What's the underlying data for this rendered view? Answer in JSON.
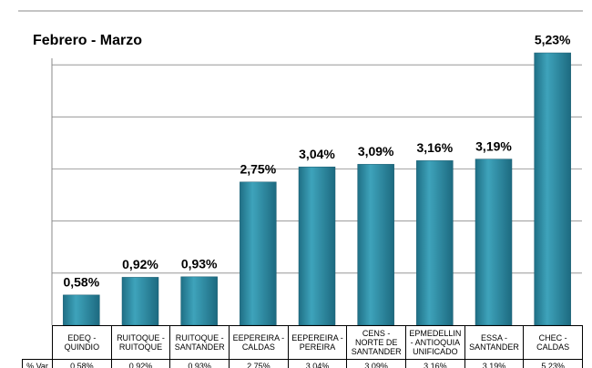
{
  "chart_data": {
    "type": "bar",
    "title": "Febrero - Marzo",
    "categories": [
      "EDEQ -\nQUINDIO",
      "RUITOQUE -\nRUITOQUE",
      "RUITOQUE -\nSANTANDER",
      "EEPEREIRA -\nCALDAS",
      "EEPEREIRA -\nPEREIRA",
      "CENS -\nNORTE DE\nSANTANDER",
      "EPMEDELLIN\n- ANTIOQUIA\nUNIFICADO",
      "ESSA -\nSANTANDER",
      "CHEC -\nCALDAS"
    ],
    "values": [
      0.58,
      0.92,
      0.93,
      2.75,
      3.04,
      3.09,
      3.16,
      3.19,
      5.23
    ],
    "value_labels": [
      "0,58%",
      "0,92%",
      "0,93%",
      "2,75%",
      "3,04%",
      "3,09%",
      "3,16%",
      "3,19%",
      "5,23%"
    ],
    "table_row_label": "% Var",
    "color": "#2f8fa6",
    "ylim": [
      0,
      6
    ],
    "yticks": [
      1,
      2,
      3,
      4,
      5
    ],
    "grid": true
  }
}
